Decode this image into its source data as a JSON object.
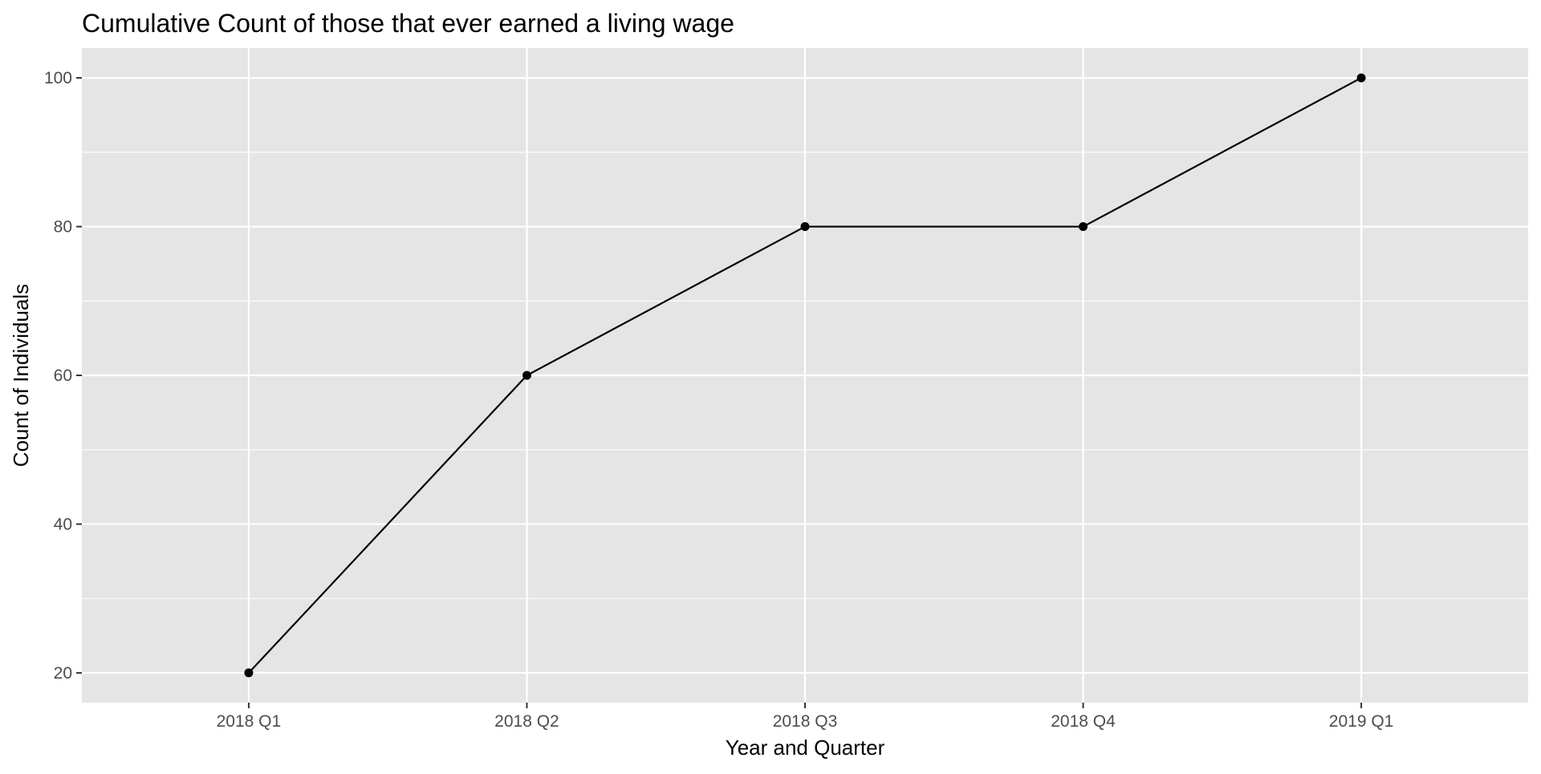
{
  "chart_data": {
    "type": "line",
    "title": "Cumulative Count of those that ever earned a living wage",
    "xlabel": "Year and Quarter",
    "ylabel": "Count of Individuals",
    "categories": [
      "2018 Q1",
      "2018 Q2",
      "2018 Q3",
      "2018 Q4",
      "2019 Q1"
    ],
    "series": [
      {
        "values": [
          20,
          60,
          80,
          80,
          100
        ],
        "color": "#000000",
        "markers": true
      }
    ],
    "ylim": [
      16,
      104
    ],
    "yticks": [
      20,
      40,
      60,
      80,
      100
    ],
    "yticks_minor": [
      30,
      50,
      70,
      90
    ],
    "grid": true,
    "legend": "none",
    "colors": {
      "panel_background": "#e5e5e5",
      "grid": "#ffffff",
      "line": "#000000",
      "tick_label": "#4d4d4d",
      "tick_mark": "#333333"
    }
  }
}
